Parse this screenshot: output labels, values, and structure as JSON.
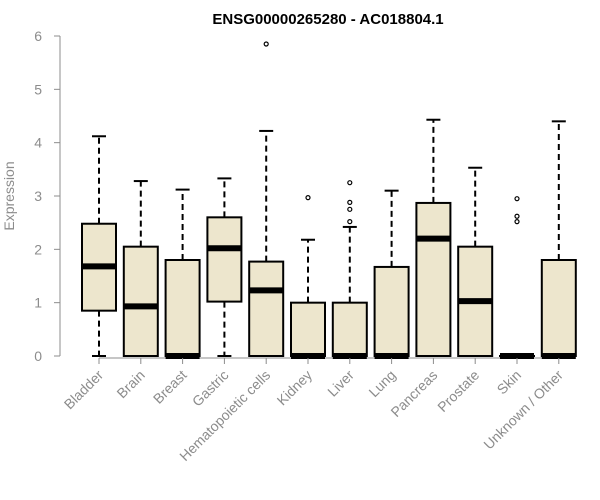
{
  "chart_data": {
    "type": "boxplot",
    "title": "ENSG00000265280 - AC018804.1",
    "ylabel": "Expression",
    "ylim": [
      0,
      6
    ],
    "yticks": [
      0,
      1,
      2,
      3,
      4,
      5,
      6
    ],
    "colors": {
      "box_fill": "#ede6cd",
      "axis": "#8c8c8c",
      "stroke": "#000000"
    },
    "categories": [
      "Bladder",
      "Brain",
      "Breast",
      "Gastric",
      "Hematopoietic cells",
      "Kidney",
      "Liver",
      "Lung",
      "Pancreas",
      "Prostate",
      "Skin",
      "Unknown / Other"
    ],
    "boxes": [
      {
        "name": "Bladder",
        "whisker_low": 0.0,
        "q1": 0.85,
        "median": 1.68,
        "q3": 2.48,
        "whisker_high": 4.12,
        "outliers": []
      },
      {
        "name": "Brain",
        "whisker_low": 0.0,
        "q1": 0.0,
        "median": 0.93,
        "q3": 2.05,
        "whisker_high": 3.28,
        "outliers": []
      },
      {
        "name": "Breast",
        "whisker_low": 0.0,
        "q1": 0.0,
        "median": 0.0,
        "q3": 1.8,
        "whisker_high": 3.12,
        "outliers": []
      },
      {
        "name": "Gastric",
        "whisker_low": 0.0,
        "q1": 1.02,
        "median": 2.02,
        "q3": 2.6,
        "whisker_high": 3.33,
        "outliers": []
      },
      {
        "name": "Hematopoietic cells",
        "whisker_low": 0.0,
        "q1": 0.0,
        "median": 1.23,
        "q3": 1.77,
        "whisker_high": 4.22,
        "outliers": [
          5.85
        ]
      },
      {
        "name": "Kidney",
        "whisker_low": 0.0,
        "q1": 0.0,
        "median": 0.0,
        "q3": 1.0,
        "whisker_high": 2.18,
        "outliers": [
          2.97
        ]
      },
      {
        "name": "Liver",
        "whisker_low": 0.0,
        "q1": 0.0,
        "median": 0.0,
        "q3": 1.0,
        "whisker_high": 2.42,
        "outliers": [
          2.52,
          2.75,
          2.88,
          3.25
        ]
      },
      {
        "name": "Lung",
        "whisker_low": 0.0,
        "q1": 0.0,
        "median": 0.0,
        "q3": 1.67,
        "whisker_high": 3.1,
        "outliers": []
      },
      {
        "name": "Pancreas",
        "whisker_low": 0.0,
        "q1": 0.0,
        "median": 2.2,
        "q3": 2.87,
        "whisker_high": 4.43,
        "outliers": []
      },
      {
        "name": "Prostate",
        "whisker_low": 0.0,
        "q1": 0.0,
        "median": 1.03,
        "q3": 2.05,
        "whisker_high": 3.53,
        "outliers": []
      },
      {
        "name": "Skin",
        "whisker_low": 0.0,
        "q1": 0.0,
        "median": 0.0,
        "q3": 0.0,
        "whisker_high": 0.0,
        "outliers": [
          2.52,
          2.62,
          2.95
        ]
      },
      {
        "name": "Unknown / Other",
        "whisker_low": 0.0,
        "q1": 0.0,
        "median": 0.0,
        "q3": 1.8,
        "whisker_high": 4.4,
        "outliers": []
      }
    ]
  }
}
